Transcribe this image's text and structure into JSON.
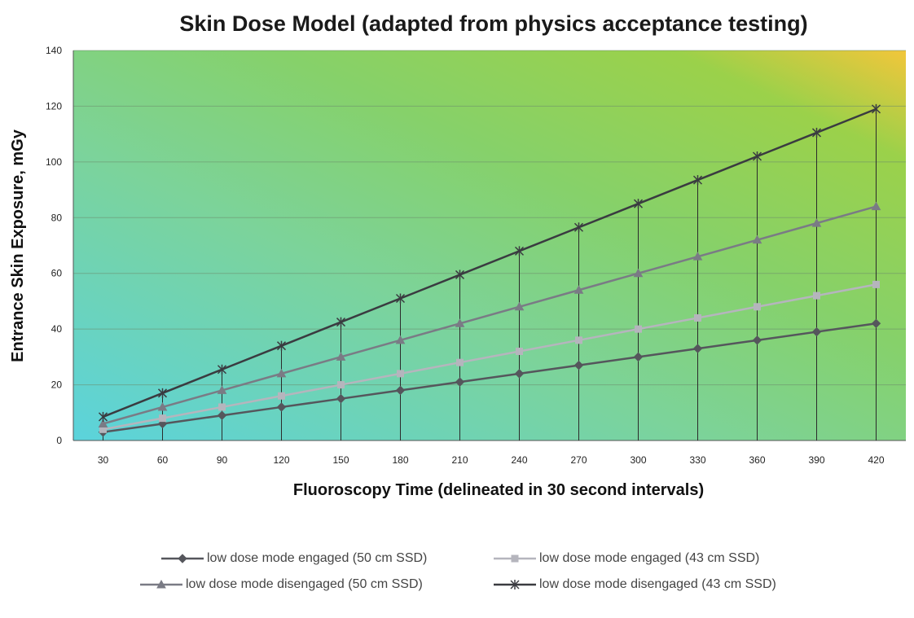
{
  "chart_data": {
    "type": "line",
    "title": "Skin Dose Model (adapted from physics acceptance testing)",
    "xlabel": "Fluoroscopy Time (delineated in 30 second intervals)",
    "ylabel": "Entrance Skin Exposure, mGy",
    "categories": [
      "30",
      "60",
      "90",
      "120",
      "150",
      "180",
      "210",
      "240",
      "270",
      "300",
      "330",
      "360",
      "390",
      "420"
    ],
    "ylim": [
      0,
      140
    ],
    "yticks": [
      "0",
      "20",
      "40",
      "60",
      "80",
      "100",
      "120",
      "140"
    ],
    "grid": true,
    "legend_position": "bottom",
    "background": "gradient cyan-green-yellow",
    "series": [
      {
        "name": "low dose mode engaged (50 cm SSD)",
        "marker": "diamond",
        "color": "#55565c",
        "values": [
          3,
          6,
          9,
          12,
          15,
          18,
          21,
          24,
          27,
          30,
          33,
          36,
          39,
          42
        ]
      },
      {
        "name": "low dose mode engaged (43 cm SSD)",
        "marker": "square",
        "color": "#b5b5bd",
        "values": [
          4,
          8,
          12,
          16,
          20,
          24,
          28,
          32,
          36,
          40,
          44,
          48,
          52,
          56
        ]
      },
      {
        "name": "low dose mode disengaged (50 cm SSD)",
        "marker": "triangle",
        "color": "#7a7b85",
        "values": [
          6,
          12,
          18,
          24,
          30,
          36,
          42,
          48,
          54,
          60,
          66,
          72,
          78,
          84
        ]
      },
      {
        "name": "low dose mode disengaged (43 cm SSD)",
        "marker": "star",
        "color": "#3a3b40",
        "values": [
          8.5,
          17,
          25.5,
          34,
          42.5,
          51,
          59.5,
          68,
          76.5,
          85,
          93.5,
          102,
          110.5,
          119
        ]
      }
    ]
  }
}
